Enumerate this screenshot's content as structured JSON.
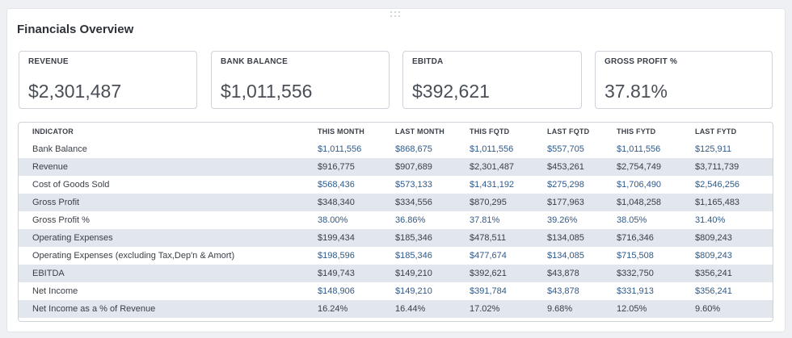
{
  "title": "Financials Overview",
  "kpis": [
    {
      "label": "REVENUE",
      "value": "$2,301,487"
    },
    {
      "label": "BANK BALANCE",
      "value": "$1,011,556"
    },
    {
      "label": "EBITDA",
      "value": "$392,621"
    },
    {
      "label": "GROSS PROFIT %",
      "value": "37.81%"
    }
  ],
  "table": {
    "headers": [
      "INDICATOR",
      "THIS MONTH",
      "LAST MONTH",
      "THIS FQTD",
      "LAST FQTD",
      "THIS FYTD",
      "LAST FYTD"
    ],
    "rows": [
      [
        "Bank Balance",
        "$1,011,556",
        "$868,675",
        "$1,011,556",
        "$557,705",
        "$1,011,556",
        "$125,911"
      ],
      [
        "Revenue",
        "$916,775",
        "$907,689",
        "$2,301,487",
        "$453,261",
        "$2,754,749",
        "$3,711,739"
      ],
      [
        "Cost of Goods Sold",
        "$568,436",
        "$573,133",
        "$1,431,192",
        "$275,298",
        "$1,706,490",
        "$2,546,256"
      ],
      [
        "Gross Profit",
        "$348,340",
        "$334,556",
        "$870,295",
        "$177,963",
        "$1,048,258",
        "$1,165,483"
      ],
      [
        "Gross Profit %",
        "38.00%",
        "36.86%",
        "37.81%",
        "39.26%",
        "38.05%",
        "31.40%"
      ],
      [
        "Operating Expenses",
        "$199,434",
        "$185,346",
        "$478,511",
        "$134,085",
        "$716,346",
        "$809,243"
      ],
      [
        "Operating Expenses (excluding Tax,Dep'n & Amort)",
        "$198,596",
        "$185,346",
        "$477,674",
        "$134,085",
        "$715,508",
        "$809,243"
      ],
      [
        "EBITDA",
        "$149,743",
        "$149,210",
        "$392,621",
        "$43,878",
        "$332,750",
        "$356,241"
      ],
      [
        "Net Income",
        "$148,906",
        "$149,210",
        "$391,784",
        "$43,878",
        "$331,913",
        "$356,241"
      ],
      [
        "Net Income as a % of Revenue",
        "16.24%",
        "16.44%",
        "17.02%",
        "9.68%",
        "12.05%",
        "9.60%"
      ]
    ]
  },
  "colors": {
    "value_blue": "#2f5a8a",
    "row_alt": "#e2e7ee"
  }
}
